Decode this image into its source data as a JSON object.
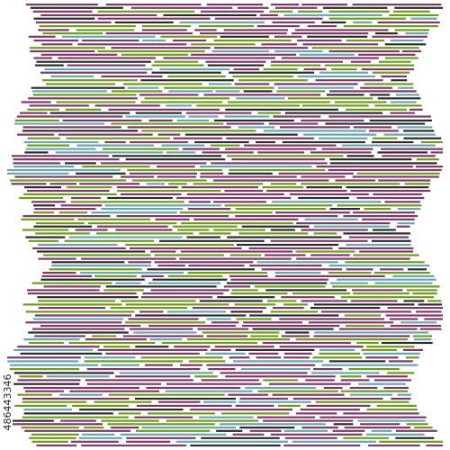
{
  "artwork": {
    "palette": {
      "background": "#ffffff",
      "plum": "#7b3b67",
      "olive": "#6f9a1f",
      "teal": "#6aa5ad",
      "charcoal": "#2b2b2b"
    },
    "pattern": "horizontal-dashed-stripes"
  },
  "watermark": {
    "stock_id": "486443346"
  }
}
